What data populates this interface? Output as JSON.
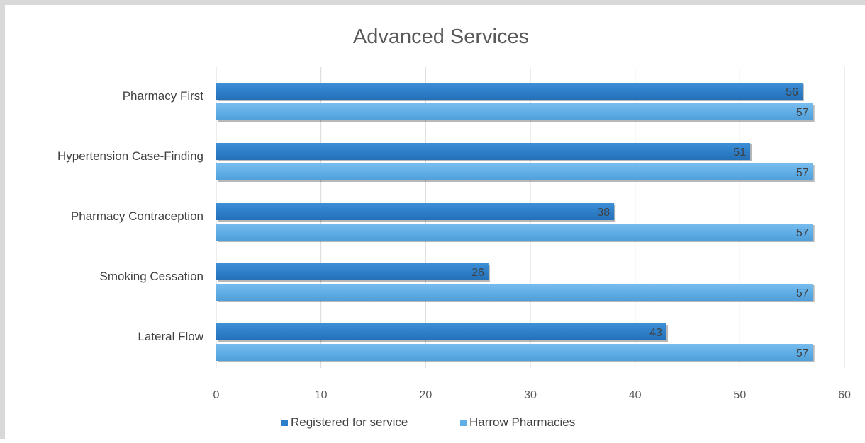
{
  "chart_data": {
    "type": "bar",
    "orientation": "horizontal",
    "title": "Advanced Services",
    "categories": [
      "Pharmacy First",
      "Hypertension Case-Finding",
      "Pharmacy Contraception",
      "Smoking Cessation",
      "Lateral Flow"
    ],
    "series": [
      {
        "name": "Registered for service",
        "values": [
          56,
          51,
          38,
          26,
          43
        ],
        "color": "#2e7fc9"
      },
      {
        "name": "Harrow Pharmacies",
        "values": [
          57,
          57,
          57,
          57,
          57
        ],
        "color": "#62aee6"
      }
    ],
    "xlim": [
      0,
      60
    ],
    "x_ticks": [
      "0",
      "10",
      "20",
      "30",
      "40",
      "50",
      "60"
    ],
    "grid": true,
    "legend_position": "bottom",
    "data_labels": true
  }
}
